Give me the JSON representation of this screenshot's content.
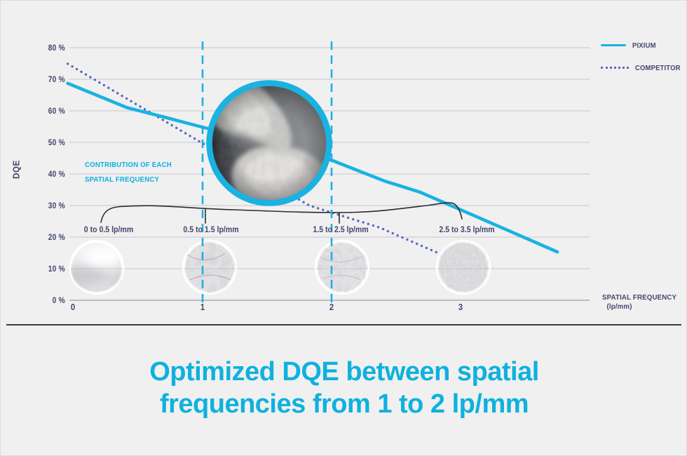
{
  "colors": {
    "background": "#f0f0f1",
    "accent_cyan": "#1ab2e0",
    "title_cyan": "#0fb1dd",
    "competitor_blue": "#5a68bb",
    "navy_text": "#424769",
    "gridline": "#c3c5d0",
    "axis_line": "#a7aab9",
    "brace_black": "#2b2b2b",
    "divider_dark": "#3a3a3c"
  },
  "legend": {
    "items": [
      {
        "label": "PIXIUM",
        "style": "solid"
      },
      {
        "label": "COMPETITOR",
        "style": "dotted"
      }
    ]
  },
  "axis": {
    "ylabel": "DQE",
    "y_ticks": [
      "80 %",
      "70 %",
      "60 %",
      "50 %",
      "40 %",
      "30 %",
      "20 %",
      "10 %",
      "0 %"
    ],
    "x_ticks": [
      "0",
      "1",
      "2",
      "3"
    ],
    "xlabel_line1": "SPATIAL FREQUENCY",
    "xlabel_line2": "(lp/mm)"
  },
  "annotation": {
    "line1": "CONTRIBUTION OF EACH",
    "line2": "SPATIAL FREQUENCY"
  },
  "bands": [
    {
      "label": "0 to 0.5 lp/mm"
    },
    {
      "label": "0.5 to 1.5 lp/mm"
    },
    {
      "label": "1.5 to 2.5 lp/mm"
    },
    {
      "label": "2.5 to 3.5 lp/mm"
    }
  ],
  "title_lines": {
    "line1": "Optimized DQE between spatial",
    "line2": "frequencies from 1 to 2 lp/mm"
  },
  "chart_data": {
    "type": "line",
    "title": "Optimized DQE between spatial frequencies from 1 to 2 lp/mm",
    "xlabel": "SPATIAL FREQUENCY (lp/mm)",
    "ylabel": "DQE (%)",
    "x_ticks": [
      0,
      1,
      2,
      3
    ],
    "xlim": [
      -0.05,
      4
    ],
    "ylim": [
      0,
      85
    ],
    "grid": "horizontal",
    "legend_position": "top-right",
    "highlight_band_lpmm": [
      1,
      2
    ],
    "series": [
      {
        "name": "PIXIUM",
        "style": "solid",
        "color": "#1ab2e0",
        "points": [
          [
            -0.04,
            68.7
          ],
          [
            0.42,
            61.0
          ],
          [
            0.69,
            58.2
          ],
          [
            0.96,
            55.3
          ],
          [
            2.0,
            44.4
          ],
          [
            2.41,
            37.8
          ],
          [
            2.69,
            34.2
          ],
          [
            3.75,
            15.3
          ]
        ]
      },
      {
        "name": "COMPETITOR",
        "style": "dotted",
        "color": "#5a68bb",
        "points": [
          [
            -0.04,
            74.9
          ],
          [
            0.42,
            63.8
          ],
          [
            1.0,
            49.8
          ],
          [
            1.83,
            30.0
          ],
          [
            2.0,
            27.8
          ],
          [
            2.37,
            23.1
          ],
          [
            2.87,
            14.2
          ]
        ]
      }
    ],
    "frequency_bands": [
      "0 to 0.5 lp/mm",
      "0.5 to 1.5 lp/mm",
      "1.5 to 2.5 lp/mm",
      "2.5 to 3.5 lp/mm"
    ]
  }
}
